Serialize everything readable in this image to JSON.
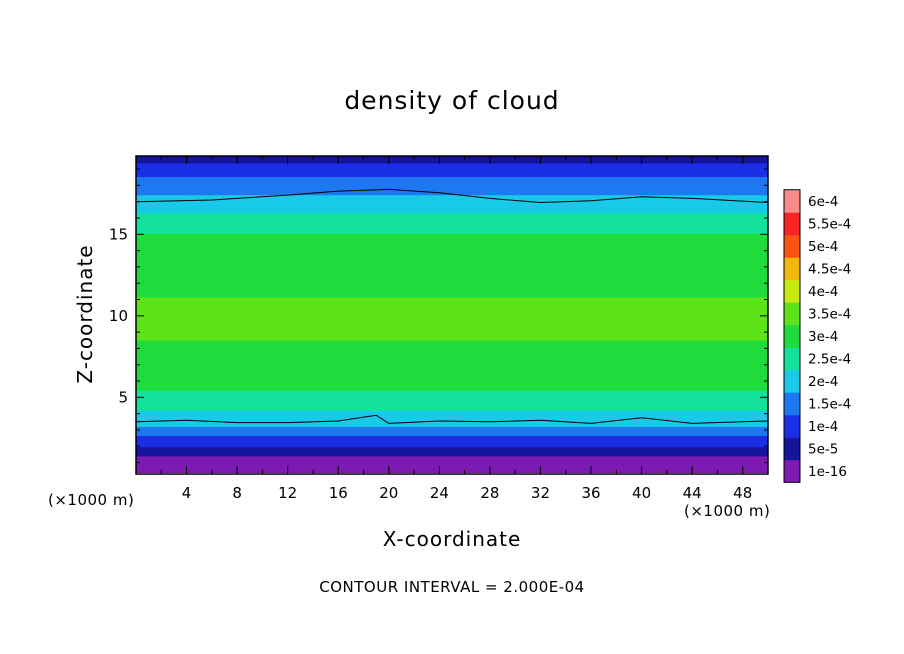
{
  "chart_data": {
    "type": "heatmap",
    "title": "density of cloud",
    "xlabel": "X-coordinate",
    "ylabel": "Z-coordinate",
    "x_unit_left": "(×1000 m)",
    "x_unit_right": "(×1000 m)",
    "xlim": [
      0,
      50
    ],
    "ylim": [
      0.3,
      19.8
    ],
    "xticks": [
      4,
      8,
      12,
      16,
      20,
      24,
      28,
      32,
      36,
      40,
      44,
      48
    ],
    "yticks": [
      5,
      10,
      15
    ],
    "contour_interval_text": "CONTOUR INTERVAL = 2.000E-04",
    "colorbar": {
      "labels": [
        "1e-16",
        "5e-5",
        "1e-4",
        "1.5e-4",
        "2e-4",
        "2.5e-4",
        "3e-4",
        "3.5e-4",
        "4e-4",
        "4.5e-4",
        "5e-4",
        "5.5e-4",
        "6e-4"
      ],
      "colors": [
        "#7d1ab4",
        "#16149c",
        "#1a2ee6",
        "#1e78f0",
        "#19c9e8",
        "#12e29a",
        "#1edc3c",
        "#5ce418",
        "#c6ea10",
        "#f0b80a",
        "#fb5410",
        "#f82222",
        "#f88a8a"
      ]
    },
    "vertical_profile": [
      {
        "z": 0.5,
        "value": 0.0
      },
      {
        "z": 1.2,
        "value": 0.0
      },
      {
        "z": 1.8,
        "value": 6e-05
      },
      {
        "z": 2.6,
        "value": 0.00012
      },
      {
        "z": 3.6,
        "value": 0.0002
      },
      {
        "z": 5.0,
        "value": 0.000265
      },
      {
        "z": 7.0,
        "value": 0.000315
      },
      {
        "z": 10.0,
        "value": 0.000335
      },
      {
        "z": 13.0,
        "value": 0.00031
      },
      {
        "z": 15.0,
        "value": 0.000275
      },
      {
        "z": 17.0,
        "value": 0.0002
      },
      {
        "z": 18.4,
        "value": 0.00013
      },
      {
        "z": 19.8,
        "value": 5e-05
      }
    ],
    "contour_lines": [
      {
        "value": 0.0002,
        "points": [
          [
            0,
            3.5
          ],
          [
            4,
            3.6
          ],
          [
            8,
            3.45
          ],
          [
            12,
            3.45
          ],
          [
            16,
            3.55
          ],
          [
            19,
            3.9
          ],
          [
            20,
            3.4
          ],
          [
            24,
            3.55
          ],
          [
            28,
            3.5
          ],
          [
            32,
            3.6
          ],
          [
            36,
            3.4
          ],
          [
            40,
            3.75
          ],
          [
            44,
            3.4
          ],
          [
            48,
            3.5
          ],
          [
            50,
            3.55
          ]
        ]
      },
      {
        "value": 0.0002,
        "points": [
          [
            0,
            17.0
          ],
          [
            6,
            17.1
          ],
          [
            12,
            17.4
          ],
          [
            16,
            17.65
          ],
          [
            20,
            17.75
          ],
          [
            24,
            17.55
          ],
          [
            28,
            17.2
          ],
          [
            32,
            16.95
          ],
          [
            36,
            17.05
          ],
          [
            40,
            17.3
          ],
          [
            44,
            17.2
          ],
          [
            50,
            16.95
          ]
        ]
      }
    ]
  }
}
